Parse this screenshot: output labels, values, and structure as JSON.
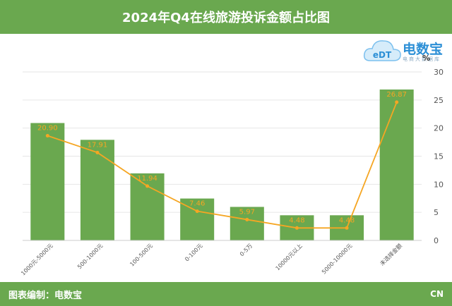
{
  "header": {
    "title": "2024年Q4在线旅游投诉金额占比图"
  },
  "footer": {
    "credit": "图表编制：电数宝",
    "tag": "CN"
  },
  "logo": {
    "text": "电数宝",
    "sub": "电商大数据库",
    "letters": "eDT"
  },
  "colors": {
    "header": "#6aa84f",
    "bar": "#6aa84f",
    "line": "#f5a623"
  },
  "chart_data": {
    "type": "bar",
    "categories": [
      "1000元-5000元",
      "500-1000元",
      "100-500元",
      "0-100元",
      "0-5万",
      "10000元以上",
      "5000-10000元",
      "未选择金额"
    ],
    "values": [
      20.9,
      17.91,
      11.94,
      7.46,
      5.97,
      4.48,
      4.48,
      26.87
    ],
    "value_labels": [
      "20.90",
      "17.91",
      "11.94",
      "7.46",
      "5.97",
      "4.48",
      "4.48",
      "26.87"
    ],
    "overlay": "line",
    "y_axis_unit": "%",
    "y_axis_position": "right",
    "ylim": [
      0,
      30
    ],
    "yticks": [
      "0",
      "5",
      "10",
      "15",
      "20",
      "25",
      "30"
    ],
    "grid": true
  }
}
